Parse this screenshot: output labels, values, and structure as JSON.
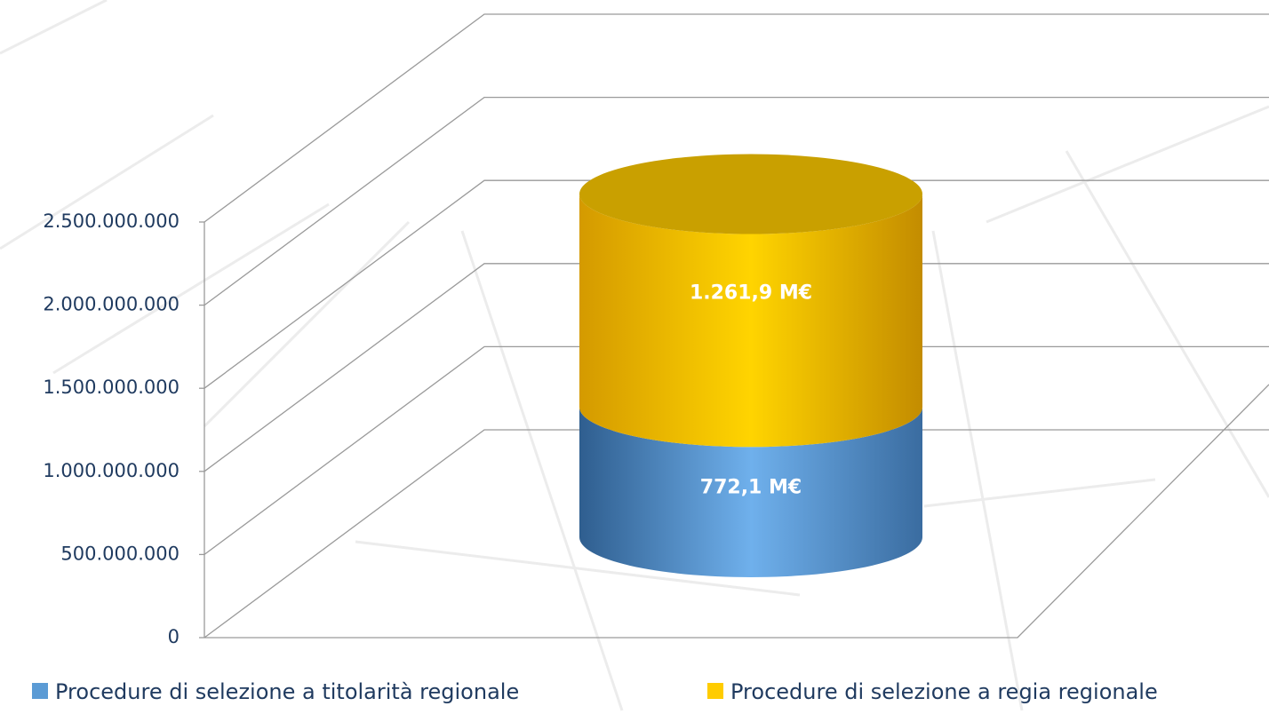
{
  "chart_data": {
    "type": "cylinder",
    "categories": [
      null
    ],
    "series": [
      {
        "name": "Procedure di selezione a titolarità regionale",
        "color": "#5b9bd5",
        "values": [
          772100000
        ],
        "value_labels": [
          "772,1 M€"
        ]
      },
      {
        "name": "Procedure di selezione a regia regionale",
        "color": "#ffcc00",
        "values": [
          1261900000
        ],
        "value_labels": [
          "1.261,9 M€"
        ]
      }
    ],
    "ylim": [
      0,
      2500000000
    ],
    "yticks": [
      0,
      {
        "value": 500000000,
        "label": "500.000.000"
      },
      {
        "value": 1000000000,
        "label": "1.000.000.000"
      },
      {
        "value": 1500000000,
        "label": "1.500.000.000"
      },
      {
        "value": 2000000000,
        "label": "2.000.000.000"
      },
      {
        "value": 2500000000,
        "label": "2.500.000.000"
      }
    ],
    "grid": true,
    "legend": "bottom"
  }
}
